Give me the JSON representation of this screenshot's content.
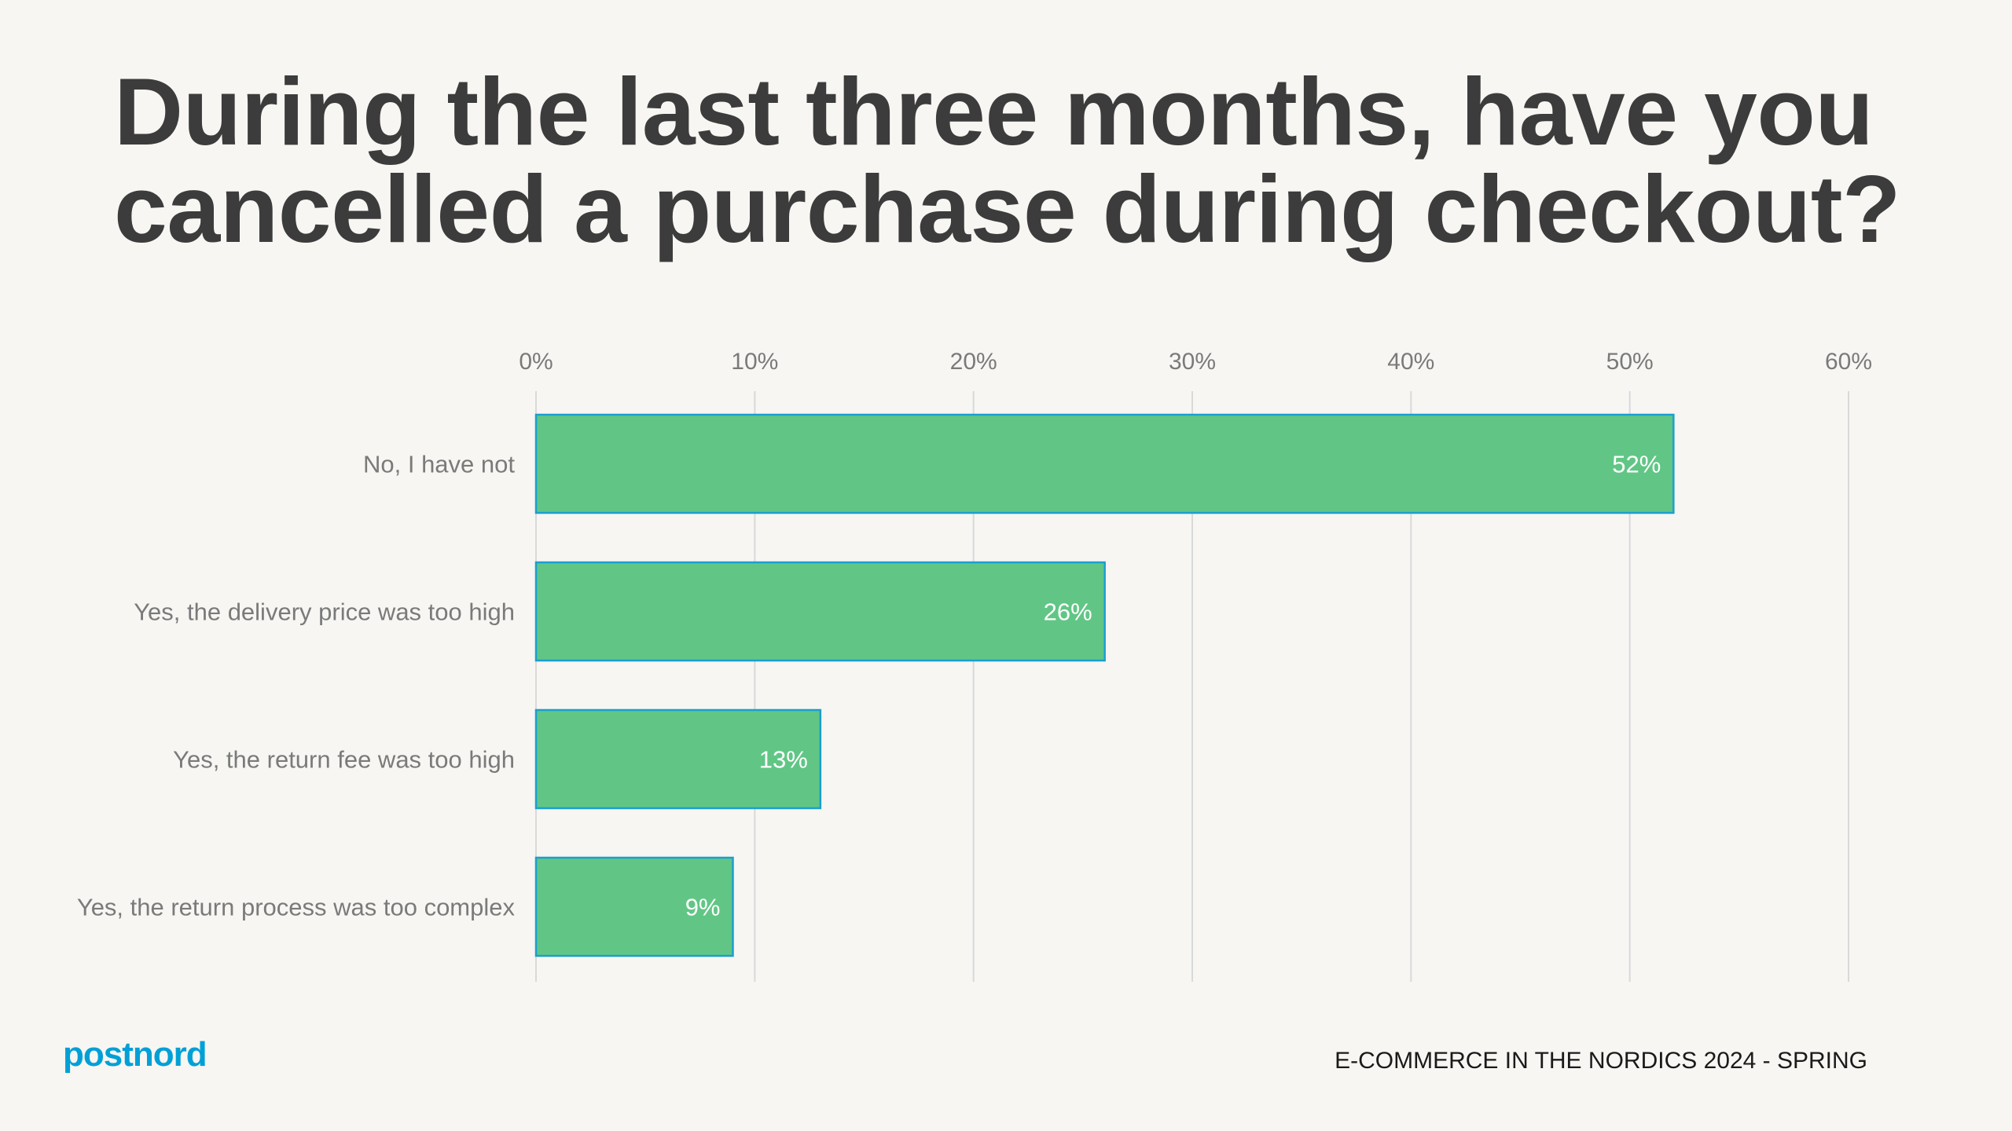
{
  "title": "During the last three months, have you cancelled a purchase during checkout?",
  "footer": {
    "logo": "postnord",
    "source": "E-COMMERCE IN THE NORDICS 2024 - SPRING"
  },
  "colors": {
    "bar": "#61c685",
    "bar_border": "#1a9fd0",
    "logo": "#00a0d6",
    "grid": "#d9d9d9",
    "text": "#7a7a7a"
  },
  "chart_data": {
    "type": "bar",
    "orientation": "horizontal",
    "categories": [
      "No, I have not",
      "Yes, the delivery price was too high",
      "Yes, the return fee was too high",
      "Yes, the return process was too complex"
    ],
    "values": [
      52,
      26,
      13,
      9
    ],
    "data_labels": [
      "52%",
      "26%",
      "13%",
      "9%"
    ],
    "xlim": [
      0,
      60
    ],
    "xticks": [
      0,
      10,
      20,
      30,
      40,
      50,
      60
    ],
    "xtick_labels": [
      "0%",
      "10%",
      "20%",
      "30%",
      "40%",
      "50%",
      "60%"
    ],
    "axis_position": "top",
    "grid": true,
    "legend": "none"
  }
}
